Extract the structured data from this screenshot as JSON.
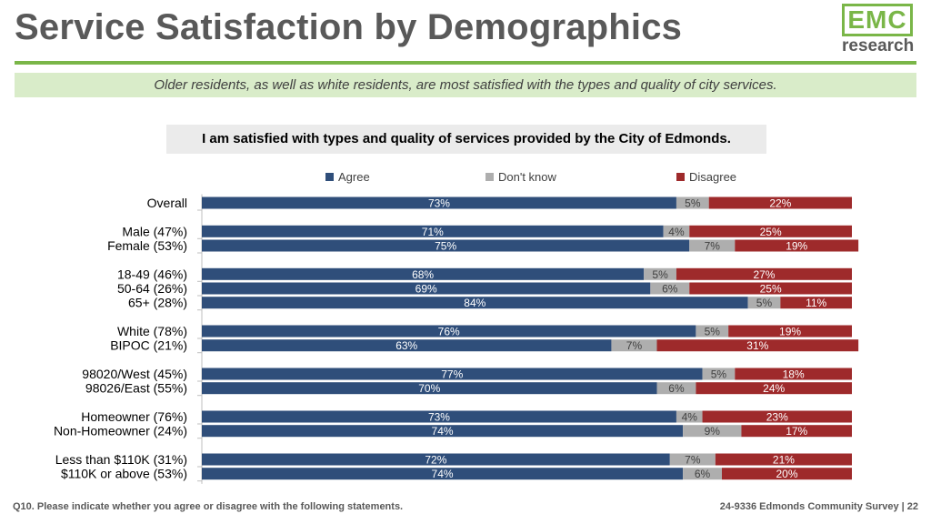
{
  "header": {
    "title": "Service Satisfaction by Demographics",
    "subtitle": "Older residents, as well as white residents, are most satisfied with the types and quality of city services."
  },
  "logo": {
    "top": "EMC",
    "bottom": "research"
  },
  "colors": {
    "agree": "#2f4e7a",
    "dont_know": "#aeaeae",
    "disagree": "#9e2a2b",
    "accent": "#7ab648"
  },
  "footer": {
    "left": "Q10. Please indicate whether you agree or disagree with the following statements.",
    "right": "24-9336 Edmonds Community Survey | 22"
  },
  "chart_data": {
    "type": "bar",
    "orientation": "horizontal",
    "stacked": true,
    "title": "I am satisfied with types and quality of services provided by the City of Edmonds.",
    "legend_position": "top",
    "xlim": [
      0,
      100
    ],
    "groups": [
      [
        0
      ],
      [
        1,
        2
      ],
      [
        3,
        4,
        5
      ],
      [
        6,
        7
      ],
      [
        8,
        9
      ],
      [
        10,
        11
      ],
      [
        12,
        13
      ]
    ],
    "categories": [
      "Overall",
      "Male (47%)",
      "Female (53%)",
      "18-49 (46%)",
      "50-64 (26%)",
      "65+ (28%)",
      "White (78%)",
      "BIPOC (21%)",
      "98020/West (45%)",
      "98026/East (55%)",
      "Homeowner (76%)",
      "Non-Homeowner (24%)",
      "Less than $110K (31%)",
      "$110K or above (53%)"
    ],
    "series": [
      {
        "name": "Agree",
        "values": [
          73,
          71,
          75,
          68,
          69,
          84,
          76,
          63,
          77,
          70,
          73,
          74,
          72,
          74
        ]
      },
      {
        "name": "Don't know",
        "values": [
          5,
          4,
          7,
          5,
          6,
          5,
          5,
          7,
          5,
          6,
          4,
          9,
          7,
          6
        ]
      },
      {
        "name": "Disagree",
        "values": [
          22,
          25,
          19,
          27,
          25,
          11,
          19,
          31,
          18,
          24,
          23,
          17,
          21,
          20
        ]
      }
    ]
  }
}
